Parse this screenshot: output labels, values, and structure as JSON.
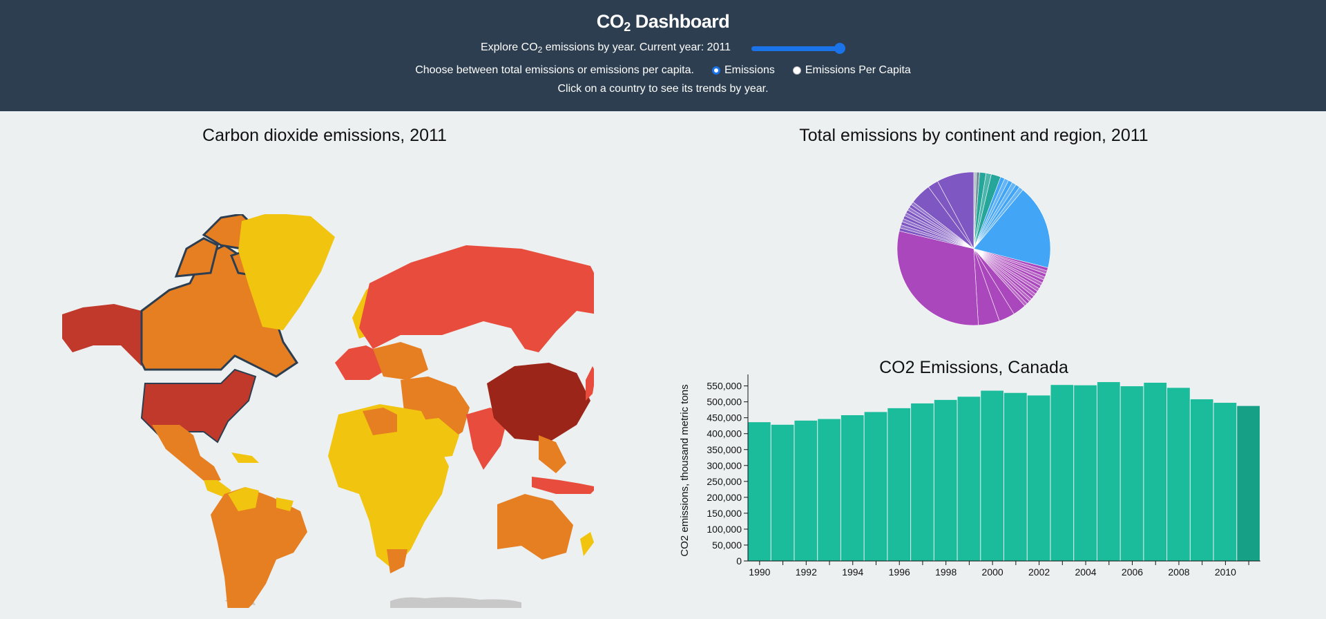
{
  "header": {
    "title_main": "CO",
    "title_sub": "2",
    "title_rest": " Dashboard",
    "explore_prefix": "Explore CO",
    "explore_sub": "2",
    "explore_suffix": " emissions by year. Current year: 2011",
    "slider_value": 1.0,
    "choose_text": "Choose between total emissions or emissions per capita.",
    "radio_emissions": "Emissions",
    "radio_per_capita": "Emissions Per Capita",
    "click_hint": "Click on a country to see its trends by year."
  },
  "map": {
    "title": "Carbon dioxide emissions, 2011"
  },
  "pie": {
    "title": "Total emissions by continent and region, 2011"
  },
  "colors": {
    "header_bg": "#2c3e50",
    "page_bg": "#ecf0f1",
    "bar": "#1abc9c",
    "bar_selected": "#16a085",
    "asia": "#ab47bc",
    "europe": "#7e57c2",
    "americas": "#42a5f5",
    "africa": "#26a69a"
  },
  "chart_data": {
    "type": "bar",
    "title": "CO2 Emissions, Canada",
    "xlabel": "",
    "ylabel": "CO2 emissions, thousand metric tons",
    "categories": [
      "1990",
      "1991",
      "1992",
      "1993",
      "1994",
      "1995",
      "1996",
      "1997",
      "1998",
      "1999",
      "2000",
      "2001",
      "2002",
      "2003",
      "2004",
      "2005",
      "2006",
      "2007",
      "2008",
      "2009",
      "2010",
      "2011"
    ],
    "values": [
      436000,
      428000,
      441000,
      446000,
      458000,
      468000,
      480000,
      495000,
      506000,
      516000,
      535000,
      528000,
      520000,
      553000,
      552000,
      562000,
      549000,
      560000,
      544000,
      508000,
      497000,
      487000
    ],
    "ylim": [
      0,
      560000
    ],
    "yticks": [
      0,
      50000,
      100000,
      150000,
      200000,
      250000,
      300000,
      350000,
      400000,
      450000,
      500000,
      550000
    ],
    "ytick_labels": [
      "0",
      "50,000",
      "100,000",
      "150,000",
      "200,000",
      "250,000",
      "300,000",
      "350,000",
      "400,000",
      "450,000",
      "500,000",
      "550,000"
    ],
    "xtick_labels": [
      "1990",
      "1992",
      "1994",
      "1996",
      "1998",
      "2000",
      "2002",
      "2004",
      "2006",
      "2008",
      "2010"
    ],
    "selected_year": "2011",
    "grid": false
  }
}
